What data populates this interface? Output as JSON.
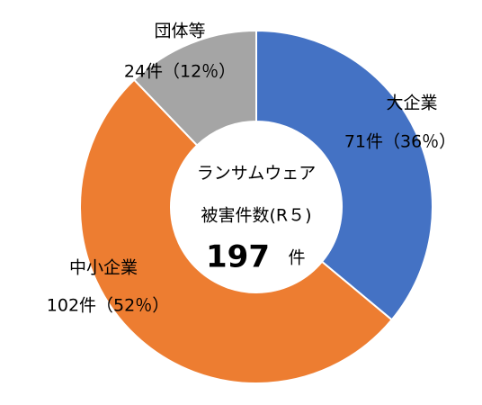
{
  "chart_data": {
    "type": "donut",
    "categories": [
      "大企業",
      "中小企業",
      "団体等"
    ],
    "values": [
      71,
      102,
      24
    ],
    "value_labels": [
      "71件（36％）",
      "102件（52％）",
      "24件（12％）"
    ],
    "colors": [
      "#4472c4",
      "#ed7d31",
      "#a5a5a5"
    ],
    "center_lines": [
      "ランサムウェア",
      "被害件数(R５)"
    ],
    "center_value": 197,
    "center_unit": "件"
  }
}
